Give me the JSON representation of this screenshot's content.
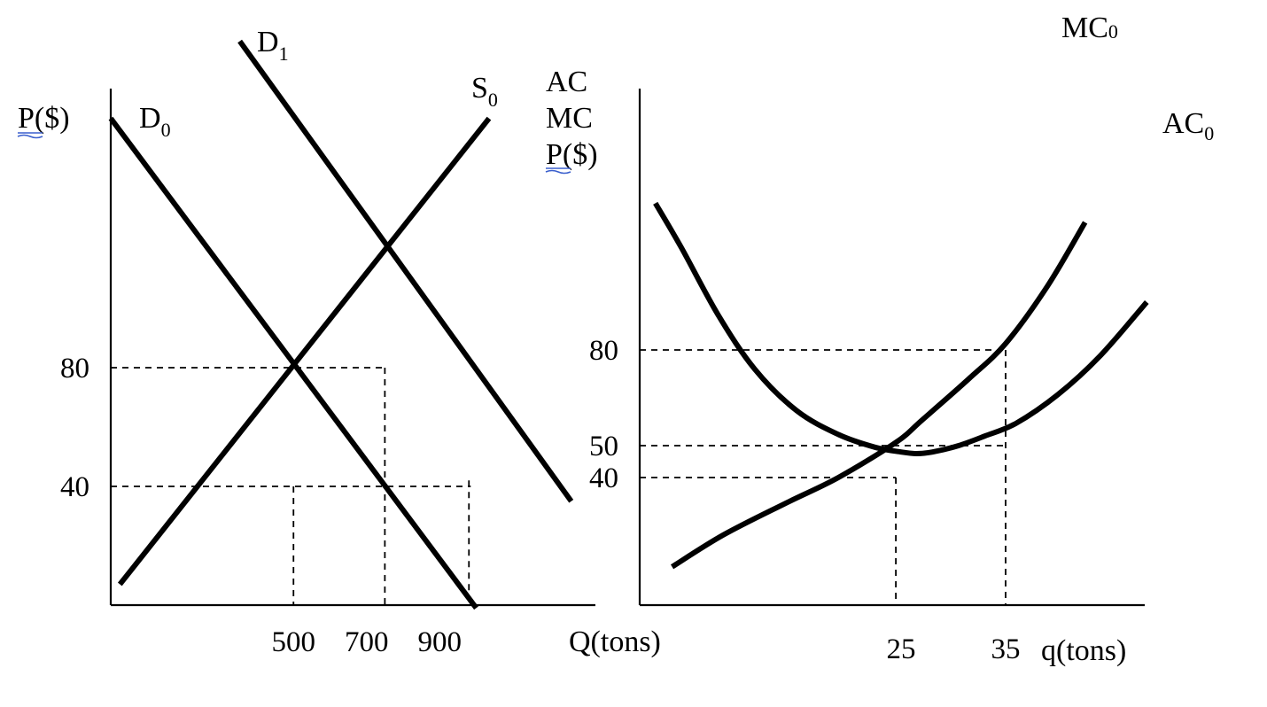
{
  "chart_data": [
    {
      "type": "line",
      "panel": "market",
      "ylabel": "P($)",
      "xlabel": "Q(tons)",
      "xlim": [
        0,
        1140
      ],
      "ylim": [
        0,
        164
      ],
      "xticks": [
        {
          "value": 500,
          "label": "500"
        },
        {
          "value": 700,
          "label": "700"
        },
        {
          "value": 900,
          "label": "900"
        }
      ],
      "yticks": [
        {
          "value": 80,
          "label": "80"
        },
        {
          "value": 40,
          "label": "40"
        }
      ],
      "series": [
        {
          "name": "D",
          "sub": "0",
          "points": [
            [
              0,
              164
            ],
            [
              1000,
              -1
            ]
          ]
        },
        {
          "name": "D",
          "sub": "1",
          "points": [
            [
              353,
              190
            ],
            [
              1260,
              35
            ]
          ]
        },
        {
          "name": "S",
          "sub": "0",
          "points": [
            [
              25,
              7
            ],
            [
              1035,
              164
            ]
          ]
        }
      ],
      "guides": [
        {
          "from": [
            0,
            80
          ],
          "to": [
            750,
            80
          ]
        },
        {
          "from": [
            750,
            80
          ],
          "to": [
            750,
            0
          ]
        },
        {
          "from": [
            0,
            40
          ],
          "to": [
            985,
            40
          ]
        },
        {
          "from": [
            500,
            40
          ],
          "to": [
            500,
            0
          ]
        },
        {
          "from": [
            980,
            42
          ],
          "to": [
            980,
            0
          ]
        }
      ]
    },
    {
      "type": "line",
      "panel": "firm",
      "ylabel_lines": [
        "AC",
        "MC",
        "P($)"
      ],
      "xlabel": "q(tons)",
      "xlim": [
        0,
        48
      ],
      "ylim": [
        0,
        140
      ],
      "xticks": [
        {
          "value": 25,
          "label": "25"
        },
        {
          "value": 35,
          "label": "35"
        }
      ],
      "yticks": [
        {
          "value": 80,
          "label": "80"
        },
        {
          "value": 50,
          "label": "50"
        },
        {
          "value": 40,
          "label": "40"
        }
      ],
      "series": [
        {
          "name": "MC",
          "sub": "0",
          "points": [
            [
              3.1,
              12
            ],
            [
              8,
              22
            ],
            [
              14,
              32
            ],
            [
              19,
              40
            ],
            [
              24.5,
              51
            ],
            [
              27,
              58
            ],
            [
              31.5,
              71
            ],
            [
              35,
              82
            ],
            [
              39,
              100
            ],
            [
              42.6,
              120
            ]
          ]
        },
        {
          "name": "AC",
          "sub": "0",
          "points": [
            [
              1.5,
              126
            ],
            [
              4,
              112
            ],
            [
              7.5,
              91
            ],
            [
              11,
              74
            ],
            [
              15,
              61
            ],
            [
              19,
              53.5
            ],
            [
              22.5,
              49.5
            ],
            [
              25,
              48
            ],
            [
              26.5,
              47.5
            ],
            [
              28,
              48
            ],
            [
              30.5,
              50
            ],
            [
              33,
              53
            ],
            [
              36,
              57
            ],
            [
              40,
              66
            ],
            [
              44,
              78
            ],
            [
              48.5,
              95
            ]
          ]
        }
      ],
      "guides": [
        {
          "from": [
            0,
            80
          ],
          "to": [
            35,
            80
          ]
        },
        {
          "from": [
            35,
            80
          ],
          "to": [
            35,
            0
          ]
        },
        {
          "from": [
            0,
            50
          ],
          "to": [
            35,
            50
          ]
        },
        {
          "from": [
            0,
            40
          ],
          "to": [
            24.5,
            40
          ]
        },
        {
          "from": [
            24.5,
            40
          ],
          "to": [
            24.5,
            0
          ]
        }
      ]
    }
  ]
}
